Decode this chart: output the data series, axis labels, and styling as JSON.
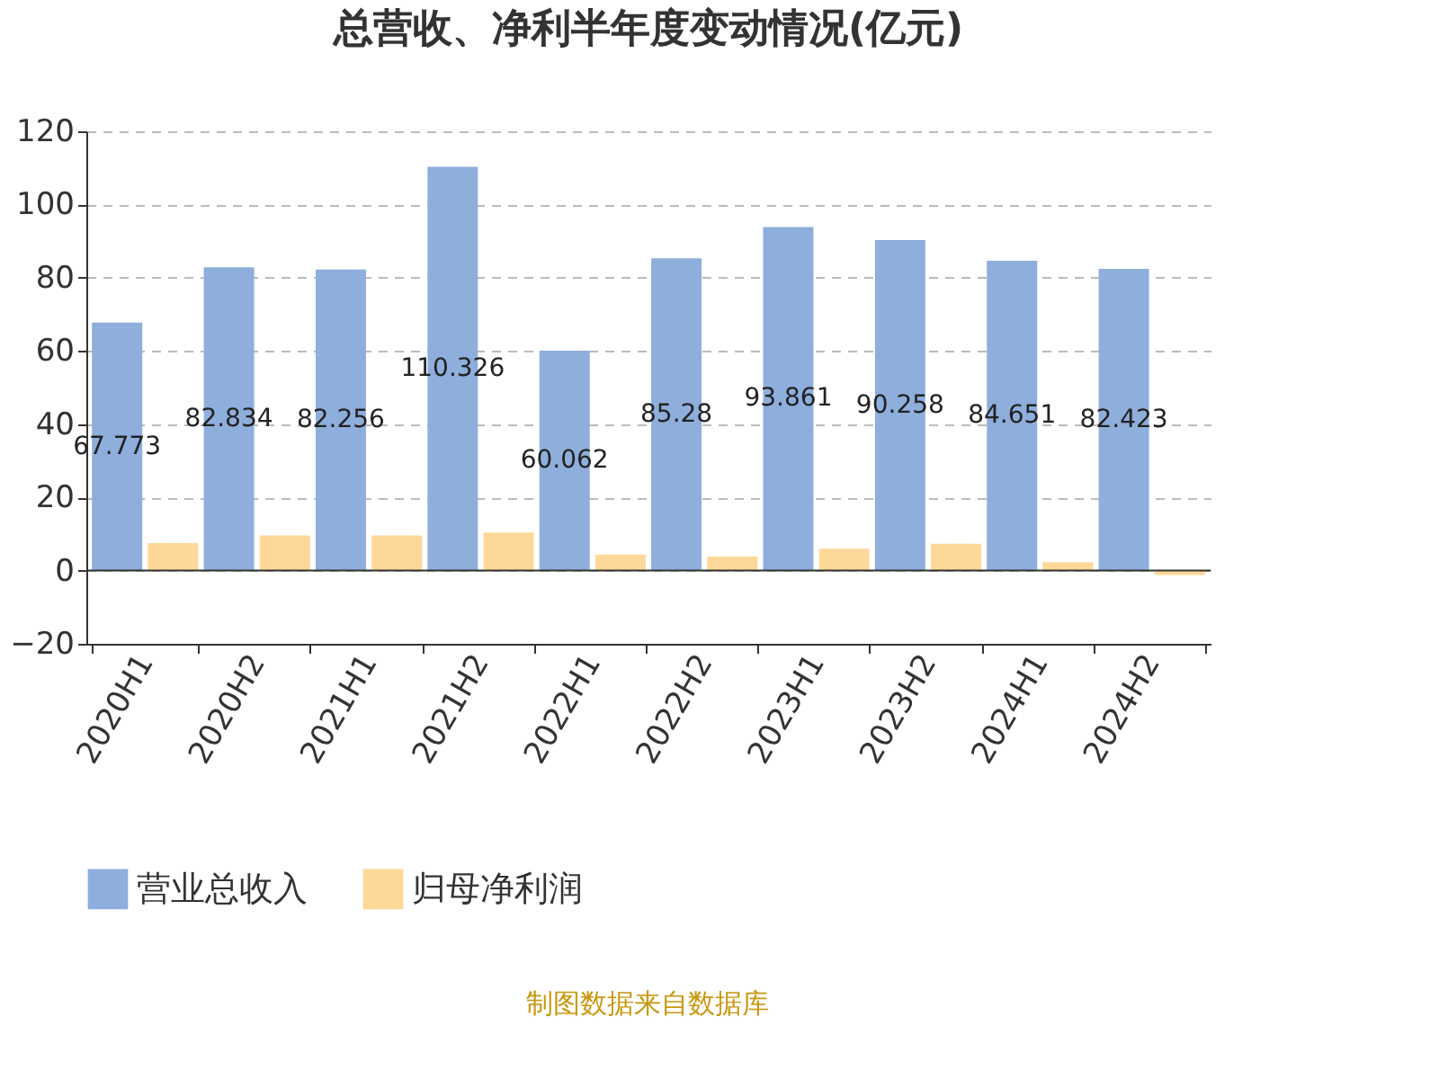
{
  "chart_data": {
    "type": "bar",
    "title": "总营收、净利半年度变动情况(亿元)",
    "categories": [
      "2020H1",
      "2020H2",
      "2021H1",
      "2021H2",
      "2022H1",
      "2022H2",
      "2023H1",
      "2023H2",
      "2024H1",
      "2024H2"
    ],
    "series": [
      {
        "name": "营业总收入",
        "color": "#8eaedc",
        "values": [
          67.773,
          82.834,
          82.256,
          110.326,
          60.062,
          85.28,
          93.861,
          90.258,
          84.651,
          82.423
        ],
        "value_labels": [
          "67.773",
          "82.834",
          "82.256",
          "110.326",
          "60.062",
          "85.28",
          "93.861",
          "90.258",
          "84.651",
          "82.423"
        ]
      },
      {
        "name": "归母净利润",
        "color": "#fdd898",
        "values": [
          7.5,
          9.6,
          9.6,
          10.4,
          4.4,
          3.8,
          6.0,
          7.3,
          2.3,
          -1.2
        ]
      }
    ],
    "ylim": [
      -20,
      120
    ],
    "yticks": [
      -20,
      0,
      20,
      40,
      60,
      80,
      100,
      120
    ],
    "grid": "y",
    "legend": "bottom",
    "annotations": [
      "制图数据来自数据库"
    ]
  }
}
